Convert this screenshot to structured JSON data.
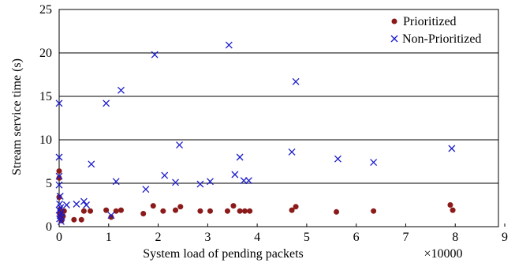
{
  "chart_data": {
    "type": "scatter",
    "title": "",
    "xlabel": "System load of pending packets",
    "ylabel": "Stream service time (s)",
    "x_multiplier_label": "×10000",
    "xlim": [
      0,
      9
    ],
    "ylim": [
      0,
      25
    ],
    "x_ticks": [
      "0",
      "1",
      "2",
      "3",
      "4",
      "5",
      "6",
      "7",
      "8",
      "9"
    ],
    "y_ticks": [
      "0",
      "5",
      "10",
      "15",
      "20",
      "25"
    ],
    "grid": "horizontal",
    "legend_position": "top-right",
    "series": [
      {
        "name": "Prioritized",
        "marker": "dot",
        "color": "#8b1a1a",
        "points": [
          [
            0.0,
            6.4
          ],
          [
            0.0,
            5.6
          ],
          [
            0.0,
            3.4
          ],
          [
            0.02,
            2.0
          ],
          [
            0.03,
            1.7
          ],
          [
            0.01,
            1.5
          ],
          [
            0.04,
            1.3
          ],
          [
            0.02,
            1.1
          ],
          [
            0.03,
            0.9
          ],
          [
            0.05,
            0.7
          ],
          [
            0.08,
            1.2
          ],
          [
            0.1,
            1.8
          ],
          [
            0.3,
            0.8
          ],
          [
            0.45,
            0.8
          ],
          [
            0.5,
            1.8
          ],
          [
            0.63,
            1.8
          ],
          [
            0.95,
            1.9
          ],
          [
            1.05,
            1.1
          ],
          [
            1.15,
            1.8
          ],
          [
            1.25,
            1.9
          ],
          [
            1.7,
            1.5
          ],
          [
            1.9,
            2.4
          ],
          [
            2.1,
            1.8
          ],
          [
            2.35,
            1.9
          ],
          [
            2.45,
            2.3
          ],
          [
            2.85,
            1.8
          ],
          [
            3.05,
            1.8
          ],
          [
            3.4,
            1.8
          ],
          [
            3.52,
            2.4
          ],
          [
            3.65,
            1.8
          ],
          [
            3.75,
            1.8
          ],
          [
            3.85,
            1.8
          ],
          [
            4.7,
            1.9
          ],
          [
            4.78,
            2.3
          ],
          [
            5.6,
            1.7
          ],
          [
            6.35,
            1.8
          ],
          [
            7.9,
            2.5
          ],
          [
            7.95,
            1.9
          ]
        ]
      },
      {
        "name": "Non-Prioritized",
        "marker": "x",
        "color": "#1a1acc",
        "points": [
          [
            0.0,
            14.2
          ],
          [
            0.0,
            8.0
          ],
          [
            0.0,
            5.8
          ],
          [
            0.0,
            4.8
          ],
          [
            0.02,
            3.5
          ],
          [
            0.01,
            2.6
          ],
          [
            0.03,
            2.2
          ],
          [
            0.0,
            1.9
          ],
          [
            0.04,
            1.6
          ],
          [
            0.02,
            1.3
          ],
          [
            0.05,
            1.1
          ],
          [
            0.01,
            0.9
          ],
          [
            0.04,
            0.6
          ],
          [
            0.15,
            2.5
          ],
          [
            0.35,
            2.6
          ],
          [
            0.5,
            2.9
          ],
          [
            0.55,
            2.5
          ],
          [
            0.65,
            7.2
          ],
          [
            0.95,
            14.2
          ],
          [
            1.05,
            1.3
          ],
          [
            1.15,
            5.2
          ],
          [
            1.25,
            15.7
          ],
          [
            1.75,
            4.3
          ],
          [
            1.93,
            19.8
          ],
          [
            2.13,
            5.9
          ],
          [
            2.35,
            5.1
          ],
          [
            2.43,
            9.4
          ],
          [
            2.85,
            4.9
          ],
          [
            3.05,
            5.2
          ],
          [
            3.43,
            20.9
          ],
          [
            3.55,
            6.0
          ],
          [
            3.65,
            8.0
          ],
          [
            3.73,
            5.3
          ],
          [
            3.83,
            5.3
          ],
          [
            4.7,
            8.6
          ],
          [
            4.78,
            16.7
          ],
          [
            5.63,
            7.8
          ],
          [
            6.35,
            7.4
          ],
          [
            7.93,
            9.0
          ]
        ]
      }
    ]
  }
}
